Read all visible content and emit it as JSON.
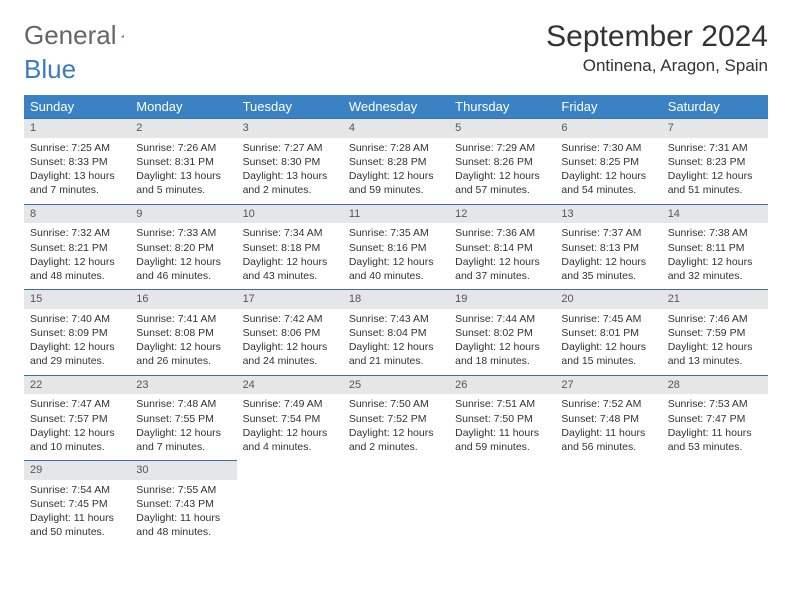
{
  "logo": {
    "part1": "General",
    "part2": "Blue"
  },
  "title": "September 2024",
  "location": "Ontinena, Aragon, Spain",
  "colors": {
    "header_bg": "#3b82c4",
    "header_text": "#ffffff",
    "daynum_bg": "#e4e6e8",
    "rule": "#3b6fa0",
    "logo_gray": "#666666",
    "logo_blue": "#3b7bbf"
  },
  "weekdays": [
    "Sunday",
    "Monday",
    "Tuesday",
    "Wednesday",
    "Thursday",
    "Friday",
    "Saturday"
  ],
  "days": [
    {
      "n": "1",
      "sr": "7:25 AM",
      "ss": "8:33 PM",
      "dl": "13 hours and 7 minutes."
    },
    {
      "n": "2",
      "sr": "7:26 AM",
      "ss": "8:31 PM",
      "dl": "13 hours and 5 minutes."
    },
    {
      "n": "3",
      "sr": "7:27 AM",
      "ss": "8:30 PM",
      "dl": "13 hours and 2 minutes."
    },
    {
      "n": "4",
      "sr": "7:28 AM",
      "ss": "8:28 PM",
      "dl": "12 hours and 59 minutes."
    },
    {
      "n": "5",
      "sr": "7:29 AM",
      "ss": "8:26 PM",
      "dl": "12 hours and 57 minutes."
    },
    {
      "n": "6",
      "sr": "7:30 AM",
      "ss": "8:25 PM",
      "dl": "12 hours and 54 minutes."
    },
    {
      "n": "7",
      "sr": "7:31 AM",
      "ss": "8:23 PM",
      "dl": "12 hours and 51 minutes."
    },
    {
      "n": "8",
      "sr": "7:32 AM",
      "ss": "8:21 PM",
      "dl": "12 hours and 48 minutes."
    },
    {
      "n": "9",
      "sr": "7:33 AM",
      "ss": "8:20 PM",
      "dl": "12 hours and 46 minutes."
    },
    {
      "n": "10",
      "sr": "7:34 AM",
      "ss": "8:18 PM",
      "dl": "12 hours and 43 minutes."
    },
    {
      "n": "11",
      "sr": "7:35 AM",
      "ss": "8:16 PM",
      "dl": "12 hours and 40 minutes."
    },
    {
      "n": "12",
      "sr": "7:36 AM",
      "ss": "8:14 PM",
      "dl": "12 hours and 37 minutes."
    },
    {
      "n": "13",
      "sr": "7:37 AM",
      "ss": "8:13 PM",
      "dl": "12 hours and 35 minutes."
    },
    {
      "n": "14",
      "sr": "7:38 AM",
      "ss": "8:11 PM",
      "dl": "12 hours and 32 minutes."
    },
    {
      "n": "15",
      "sr": "7:40 AM",
      "ss": "8:09 PM",
      "dl": "12 hours and 29 minutes."
    },
    {
      "n": "16",
      "sr": "7:41 AM",
      "ss": "8:08 PM",
      "dl": "12 hours and 26 minutes."
    },
    {
      "n": "17",
      "sr": "7:42 AM",
      "ss": "8:06 PM",
      "dl": "12 hours and 24 minutes."
    },
    {
      "n": "18",
      "sr": "7:43 AM",
      "ss": "8:04 PM",
      "dl": "12 hours and 21 minutes."
    },
    {
      "n": "19",
      "sr": "7:44 AM",
      "ss": "8:02 PM",
      "dl": "12 hours and 18 minutes."
    },
    {
      "n": "20",
      "sr": "7:45 AM",
      "ss": "8:01 PM",
      "dl": "12 hours and 15 minutes."
    },
    {
      "n": "21",
      "sr": "7:46 AM",
      "ss": "7:59 PM",
      "dl": "12 hours and 13 minutes."
    },
    {
      "n": "22",
      "sr": "7:47 AM",
      "ss": "7:57 PM",
      "dl": "12 hours and 10 minutes."
    },
    {
      "n": "23",
      "sr": "7:48 AM",
      "ss": "7:55 PM",
      "dl": "12 hours and 7 minutes."
    },
    {
      "n": "24",
      "sr": "7:49 AM",
      "ss": "7:54 PM",
      "dl": "12 hours and 4 minutes."
    },
    {
      "n": "25",
      "sr": "7:50 AM",
      "ss": "7:52 PM",
      "dl": "12 hours and 2 minutes."
    },
    {
      "n": "26",
      "sr": "7:51 AM",
      "ss": "7:50 PM",
      "dl": "11 hours and 59 minutes."
    },
    {
      "n": "27",
      "sr": "7:52 AM",
      "ss": "7:48 PM",
      "dl": "11 hours and 56 minutes."
    },
    {
      "n": "28",
      "sr": "7:53 AM",
      "ss": "7:47 PM",
      "dl": "11 hours and 53 minutes."
    },
    {
      "n": "29",
      "sr": "7:54 AM",
      "ss": "7:45 PM",
      "dl": "11 hours and 50 minutes."
    },
    {
      "n": "30",
      "sr": "7:55 AM",
      "ss": "7:43 PM",
      "dl": "11 hours and 48 minutes."
    }
  ],
  "labels": {
    "sunrise": "Sunrise:",
    "sunset": "Sunset:",
    "daylight": "Daylight:"
  }
}
